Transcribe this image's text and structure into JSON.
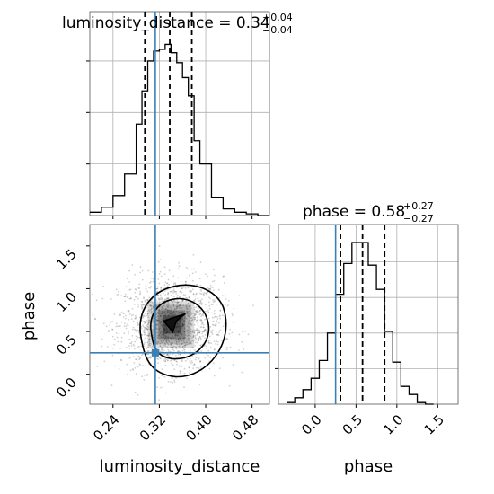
{
  "colors": {
    "truth": "#3a7fb5",
    "hist": "#000000",
    "grid": "#b0b0b0"
  },
  "chart_data": [
    {
      "type": "histogram",
      "panel": "luminosity_distance marginal",
      "title": {
        "main": "luminosity_distance = 0.34",
        "sup": "+0.04",
        "sub": "−0.04"
      },
      "bin_edges": [
        0.2,
        0.22,
        0.24,
        0.26,
        0.28,
        0.29,
        0.3,
        0.31,
        0.32,
        0.33,
        0.34,
        0.35,
        0.36,
        0.37,
        0.38,
        0.39,
        0.41,
        0.43,
        0.45,
        0.47,
        0.49,
        0.51
      ],
      "counts": [
        0.02,
        0.05,
        0.12,
        0.25,
        0.55,
        0.75,
        0.93,
        0.99,
        1.0,
        1.03,
        0.98,
        0.92,
        0.83,
        0.72,
        0.45,
        0.31,
        0.11,
        0.04,
        0.02,
        0.01,
        0.0
      ],
      "quantile_lines": [
        0.295,
        0.338,
        0.376
      ],
      "truth": 0.313,
      "xlim": [
        0.2,
        0.51
      ]
    },
    {
      "type": "histogram",
      "panel": "phase marginal",
      "title": {
        "main": "phase = 0.58",
        "sup": "+0.27",
        "sub": "−0.27"
      },
      "bin_edges": [
        -0.35,
        -0.25,
        -0.15,
        -0.05,
        0.05,
        0.15,
        0.25,
        0.35,
        0.45,
        0.55,
        0.65,
        0.75,
        0.85,
        0.95,
        1.05,
        1.15,
        1.25,
        1.35,
        1.45
      ],
      "counts": [
        0.01,
        0.04,
        0.09,
        0.16,
        0.27,
        0.44,
        0.68,
        0.87,
        1.0,
        1.0,
        0.86,
        0.71,
        0.45,
        0.26,
        0.11,
        0.06,
        0.01,
        0.0
      ],
      "quantile_lines": [
        0.31,
        0.58,
        0.85
      ],
      "truth": 0.25,
      "xlim": [
        -0.45,
        1.75
      ],
      "xticks": [
        "0.0",
        "0.5",
        "1.0",
        "1.5"
      ],
      "xlabel": "phase"
    },
    {
      "type": "scatter",
      "panel": "2D corner",
      "xlabel": "luminosity_distance",
      "ylabel": "phase",
      "xticks": [
        "0.24",
        "0.32",
        "0.40",
        "0.48"
      ],
      "yticks": [
        "0.0",
        "0.5",
        "1.0",
        "1.5"
      ],
      "xlim": [
        0.2,
        0.51
      ],
      "ylim": [
        -0.35,
        1.75
      ],
      "truth": {
        "x": 0.313,
        "y": 0.25
      },
      "point_cloud": {
        "n": 1600,
        "center": [
          0.34,
          0.58
        ],
        "sigma": [
          0.045,
          0.28
        ]
      }
    }
  ]
}
